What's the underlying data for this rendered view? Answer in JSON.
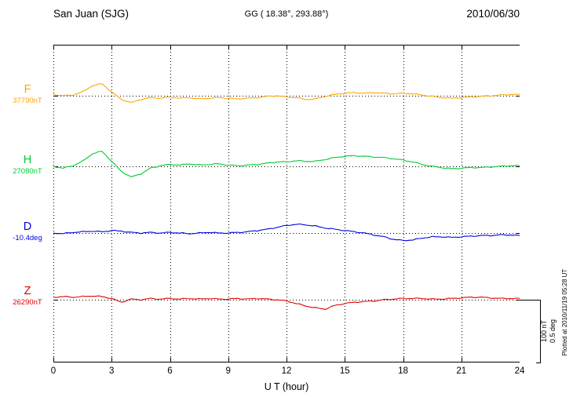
{
  "header": {
    "station": "San Juan (SJG)",
    "coords": "GG ( 18.38°, 293.88°)",
    "date": "2010/06/30"
  },
  "side": {
    "scale_top": "100 nT",
    "scale_bottom": "0.5 deg",
    "plotted_at": "Plotted at 2010/11/19 05:28 UT"
  },
  "chart_data": {
    "type": "line",
    "xlabel": "U T (hour)",
    "x_range": [
      0,
      24
    ],
    "x_ticks": [
      0,
      3,
      6,
      9,
      12,
      15,
      18,
      21,
      24
    ],
    "x_step_hours": 0.5,
    "grid": "dotted vertical lines every 3 h; dotted horizontal baseline per trace",
    "scale_bar": {
      "nT": 100,
      "deg": 0.5
    },
    "units_note": "offsets are relative to each trace baseline; F,H,Z in nT; D scaled so 100 units = 0.5 deg",
    "series": [
      {
        "name": "F",
        "baseline_label": "37790nT",
        "color": "#FFA500",
        "offsets": [
          2,
          0,
          1,
          6,
          16,
          19,
          6,
          -6,
          -11,
          -6,
          -3,
          -4,
          -2,
          -4,
          -3,
          -5,
          -4,
          -3,
          -4,
          -5,
          -4,
          -3,
          -1,
          0,
          -2,
          -3,
          -6,
          -5,
          -1,
          2,
          4,
          5,
          4,
          5,
          4,
          3,
          4,
          3,
          1,
          -1,
          -3,
          -4,
          -3,
          -2,
          -1,
          0,
          1,
          2,
          2
        ]
      },
      {
        "name": "H",
        "baseline_label": "27080nT",
        "color": "#00CC33",
        "offsets": [
          0,
          -3,
          1,
          8,
          20,
          24,
          8,
          -8,
          -17,
          -12,
          -3,
          1,
          3,
          2,
          4,
          2,
          3,
          4,
          2,
          1,
          2,
          3,
          5,
          7,
          7,
          9,
          8,
          8,
          11,
          14,
          16,
          17,
          16,
          15,
          14,
          12,
          10,
          7,
          3,
          0,
          -2,
          -4,
          -3,
          -2,
          -2,
          -1,
          0,
          1,
          1
        ]
      },
      {
        "name": "D",
        "baseline_label": "-10.4deg",
        "color": "#0000E0",
        "offsets": [
          0,
          -1,
          1,
          2,
          3,
          2,
          4,
          3,
          1,
          0,
          1,
          0,
          1,
          0,
          -1,
          0,
          1,
          0,
          0,
          1,
          2,
          4,
          6,
          9,
          12,
          14,
          13,
          11,
          8,
          6,
          4,
          2,
          0,
          -3,
          -6,
          -10,
          -12,
          -11,
          -8,
          -6,
          -6,
          -7,
          -6,
          -5,
          -4,
          -4,
          -3,
          -3,
          -4
        ]
      },
      {
        "name": "Z",
        "baseline_label": "26290nT",
        "color": "#E00000",
        "offsets": [
          4,
          5,
          4,
          5,
          6,
          5,
          2,
          -4,
          1,
          0,
          2,
          1,
          2,
          1,
          2,
          1,
          2,
          1,
          1,
          2,
          1,
          2,
          1,
          0,
          -2,
          -6,
          -10,
          -13,
          -15,
          -9,
          -6,
          -4,
          -3,
          -2,
          0,
          1,
          2,
          2,
          2,
          1,
          1,
          2,
          3,
          4,
          4,
          3,
          2,
          2,
          2
        ]
      }
    ]
  }
}
